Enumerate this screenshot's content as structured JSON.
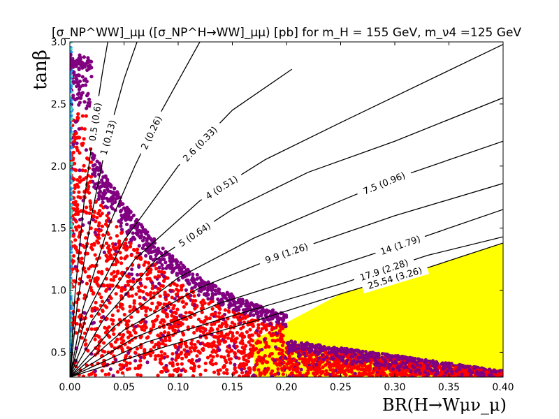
{
  "chart_data": {
    "type": "scatter",
    "title": "[σ_NP^WW]_μμ ([σ_NP^H→WW]_μμ) [pb] for m_H = 155 GeV, m_ν4 =125 GeV",
    "xlabel": "BR(H→Wμν_μ)",
    "ylabel": "tanβ",
    "xlim": [
      0.0,
      0.4
    ],
    "ylim": [
      0.3,
      3.0
    ],
    "x_ticks": [
      "0.00",
      "0.05",
      "0.10",
      "0.15",
      "0.20",
      "0.25",
      "0.30",
      "0.35",
      "0.40"
    ],
    "y_ticks": [
      "0.5",
      "1.0",
      "1.5",
      "2.0",
      "2.5",
      "3.0"
    ],
    "grid": false,
    "contours": [
      {
        "label": "0.5 (0.6)",
        "points": [
          [
            0.0,
            0.3
          ],
          [
            0.005,
            1.0
          ],
          [
            0.013,
            1.7
          ],
          [
            0.022,
            2.3
          ],
          [
            0.03,
            2.75
          ],
          [
            0.035,
            3.0
          ]
        ]
      },
      {
        "label": "1 (0.13)",
        "points": [
          [
            0.0,
            0.3
          ],
          [
            0.007,
            0.9
          ],
          [
            0.02,
            1.6
          ],
          [
            0.034,
            2.2
          ],
          [
            0.05,
            2.7
          ],
          [
            0.062,
            3.0
          ]
        ]
      },
      {
        "label": "2 (0.26)",
        "points": [
          [
            0.0,
            0.3
          ],
          [
            0.012,
            0.85
          ],
          [
            0.035,
            1.5
          ],
          [
            0.06,
            2.0
          ],
          [
            0.085,
            2.45
          ],
          [
            0.12,
            3.0
          ]
        ]
      },
      {
        "label": "2.6 (0.33)",
        "points": [
          [
            0.0,
            0.3
          ],
          [
            0.015,
            0.8
          ],
          [
            0.05,
            1.4
          ],
          [
            0.1,
            2.0
          ],
          [
            0.15,
            2.45
          ],
          [
            0.205,
            2.78
          ]
        ]
      },
      {
        "label": "4 (0.51)",
        "points": [
          [
            0.0,
            0.3
          ],
          [
            0.02,
            0.75
          ],
          [
            0.06,
            1.25
          ],
          [
            0.12,
            1.72
          ],
          [
            0.18,
            2.05
          ],
          [
            0.25,
            2.35
          ],
          [
            0.4,
            2.98
          ]
        ]
      },
      {
        "label": "5 (0.64)",
        "points": [
          [
            0.0,
            0.3
          ],
          [
            0.03,
            0.75
          ],
          [
            0.08,
            1.25
          ],
          [
            0.15,
            1.65
          ],
          [
            0.22,
            1.95
          ],
          [
            0.3,
            2.2
          ],
          [
            0.4,
            2.55
          ]
        ]
      },
      {
        "label": "7.5 (0.96)",
        "points": [
          [
            0.0,
            0.3
          ],
          [
            0.04,
            0.7
          ],
          [
            0.1,
            1.1
          ],
          [
            0.17,
            1.42
          ],
          [
            0.25,
            1.72
          ],
          [
            0.3,
            1.9
          ],
          [
            0.4,
            2.2
          ]
        ]
      },
      {
        "label": "9.9 (1.26)",
        "points": [
          [
            0.0,
            0.3
          ],
          [
            0.05,
            0.68
          ],
          [
            0.12,
            1.02
          ],
          [
            0.2,
            1.3
          ],
          [
            0.3,
            1.6
          ],
          [
            0.4,
            1.86
          ]
        ]
      },
      {
        "label": "14 (1.79)",
        "points": [
          [
            0.0,
            0.3
          ],
          [
            0.06,
            0.62
          ],
          [
            0.14,
            0.9
          ],
          [
            0.22,
            1.12
          ],
          [
            0.3,
            1.35
          ],
          [
            0.4,
            1.65
          ]
        ]
      },
      {
        "label": "17.9 (2.28)",
        "points": [
          [
            0.0,
            0.3
          ],
          [
            0.07,
            0.58
          ],
          [
            0.16,
            0.82
          ],
          [
            0.25,
            1.05
          ],
          [
            0.33,
            1.28
          ],
          [
            0.4,
            1.43
          ]
        ]
      },
      {
        "label": "25.54 (3.26)",
        "points": [
          [
            0.0,
            0.3
          ],
          [
            0.09,
            0.55
          ],
          [
            0.17,
            0.75
          ],
          [
            0.25,
            0.97
          ],
          [
            0.33,
            1.18
          ],
          [
            0.4,
            1.38
          ]
        ]
      }
    ],
    "allowed_region": {
      "color": "#ffff00",
      "boundary": [
        [
          0.17,
          0.6
        ],
        [
          0.25,
          0.97
        ],
        [
          0.33,
          1.18
        ],
        [
          0.4,
          1.38
        ]
      ]
    },
    "scatter_series": [
      {
        "color": "#ff0000",
        "region": "dense lower-left wedge"
      },
      {
        "color": "#800080",
        "region": "upper edge of wedge"
      },
      {
        "color": "#1e90ff",
        "region": "x≈0 column"
      },
      {
        "color": "#40e0d0",
        "region": "x≈0 column"
      }
    ],
    "colors": {
      "contour": "#000000",
      "allowed": "#ffff00",
      "red": "#ff0000",
      "purple": "#800080",
      "blue": "#1e90ff",
      "cyan": "#40e0d0"
    }
  }
}
